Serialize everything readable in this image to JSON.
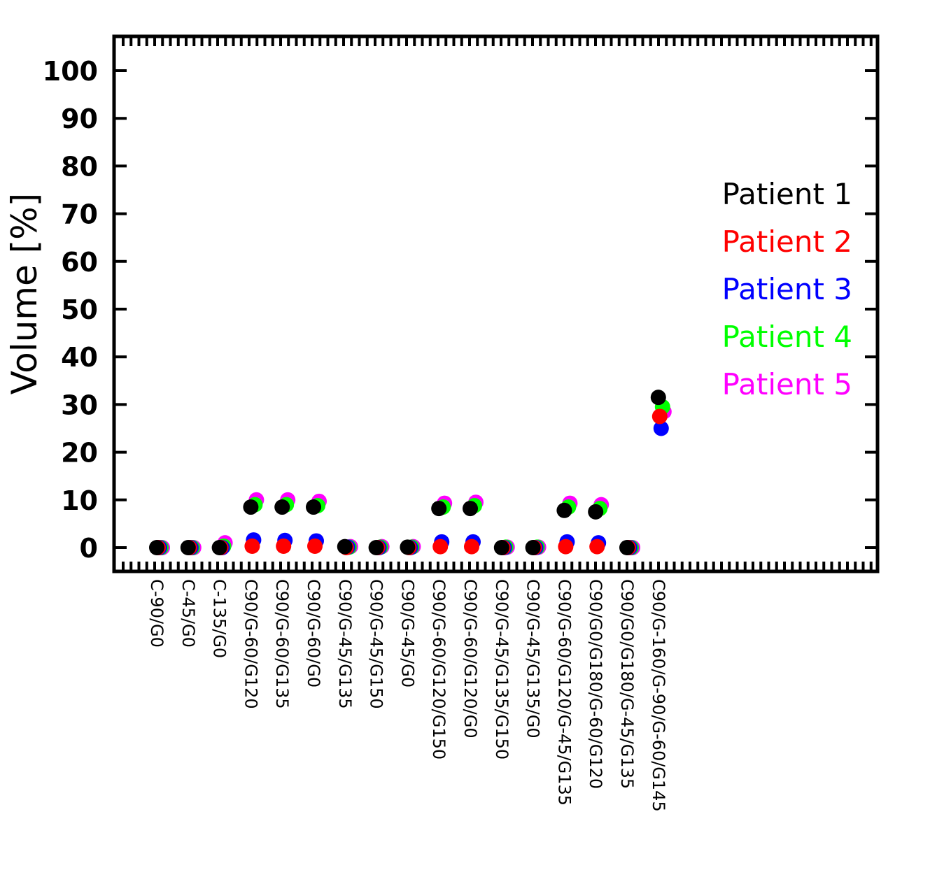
{
  "chart_data": {
    "type": "scatter",
    "title": "",
    "xlabel": "",
    "ylabel": "Volume [%]",
    "ylim": [
      -5,
      107
    ],
    "yticks": [
      0,
      10,
      20,
      30,
      40,
      50,
      60,
      70,
      80,
      90,
      100
    ],
    "grid": false,
    "legend_position": "right",
    "categories": [
      "C-90/G0",
      "C-45/G0",
      "C-135/G0",
      "C90/G-60/G120",
      "C90/G-60/G135",
      "C90/G-60/G0",
      "C90/G-45/G135",
      "C90/G-45/G150",
      "C90/G-45/G0",
      "C90/G-60/G120/G150",
      "C90/G-60/G120/G0",
      "C90/G-45/G135/G150",
      "C90/G-45/G135/G0",
      "C90/G-60/G120/G-45/G135",
      "C90/G0/G180/G-60/G120",
      "C90/G0/G180/G-45/G135",
      "C90/G-160/G-90/G-60/G145"
    ],
    "series": [
      {
        "name": "Patient 5",
        "color": "#ff00ff",
        "values": [
          0,
          0,
          1.0,
          10.0,
          10.0,
          9.7,
          0.2,
          0.2,
          0.2,
          9.3,
          9.5,
          0.1,
          0.1,
          9.3,
          9.0,
          0,
          28.5
        ]
      },
      {
        "name": "Patient 4",
        "color": "#00ff00",
        "values": [
          0,
          0,
          0.3,
          9.0,
          9.0,
          8.8,
          0.1,
          0.1,
          0.1,
          8.5,
          8.8,
          0.1,
          0.1,
          8.5,
          8.2,
          0,
          29.5
        ]
      },
      {
        "name": "Patient 3",
        "color": "#0000ff",
        "values": [
          0,
          0,
          0,
          1.6,
          1.5,
          1.4,
          0.1,
          0,
          0,
          1.2,
          1.2,
          0,
          0,
          1.2,
          1.0,
          0,
          25.0
        ]
      },
      {
        "name": "Patient 2",
        "color": "#ff0000",
        "values": [
          0,
          0,
          0,
          0.3,
          0.3,
          0.3,
          0,
          0,
          0,
          0.2,
          0.2,
          0,
          0,
          0.2,
          0.2,
          0,
          27.5
        ]
      },
      {
        "name": "Patient 1",
        "color": "#000000",
        "values": [
          0,
          0,
          0,
          8.5,
          8.5,
          8.5,
          0.2,
          0,
          0.1,
          8.2,
          8.2,
          0,
          0,
          7.8,
          7.5,
          0,
          31.5
        ]
      }
    ],
    "legend": [
      {
        "label": "Patient 1",
        "color": "#000000"
      },
      {
        "label": "Patient 2",
        "color": "#ff0000"
      },
      {
        "label": "Patient 3",
        "color": "#0000ff"
      },
      {
        "label": "Patient 4",
        "color": "#00ff00"
      },
      {
        "label": "Patient 5",
        "color": "#ff00ff"
      }
    ]
  }
}
